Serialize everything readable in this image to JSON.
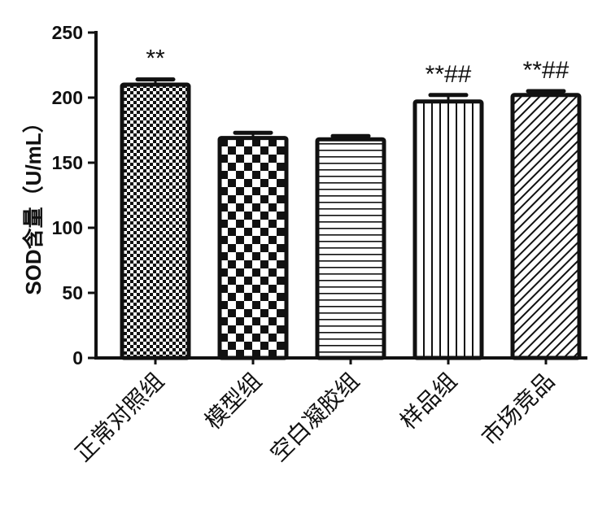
{
  "chart_data": {
    "type": "bar",
    "title": "",
    "xlabel": "",
    "ylabel": "SOD含量（U/mL）",
    "ylim": [
      0,
      250
    ],
    "yticks": [
      "0",
      "50",
      "100",
      "150",
      "200",
      "250"
    ],
    "categories": [
      "正常对照组",
      "模型组",
      "空白凝胶组",
      "样品组",
      "市场竞品"
    ],
    "values": [
      210,
      169,
      168,
      197,
      202
    ],
    "errors": [
      4,
      4,
      2.5,
      5,
      3
    ],
    "annotations": [
      "**",
      "",
      "",
      "**##",
      "**##"
    ],
    "patterns": [
      "fine-checker",
      "coarse-checker",
      "horizontal-lines",
      "vertical-lines",
      "diagonal-lines"
    ],
    "grid": false
  }
}
